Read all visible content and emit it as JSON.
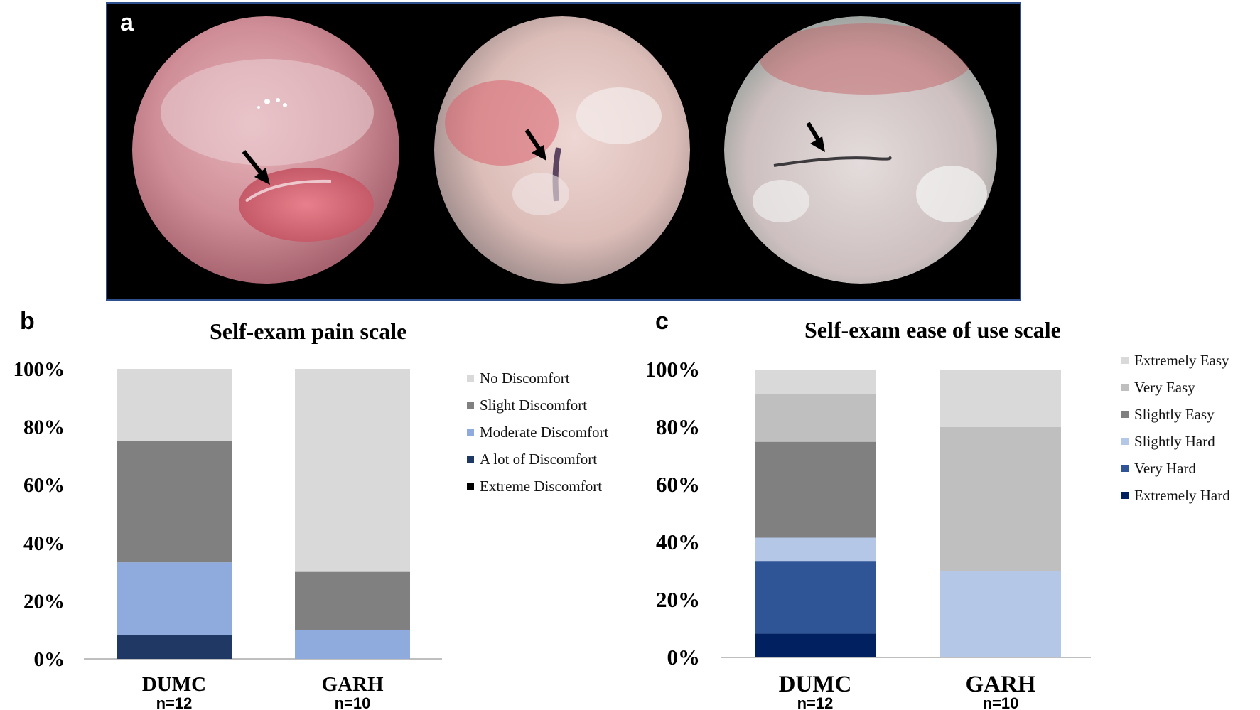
{
  "panel_a": {
    "letter": "a",
    "images": [
      {
        "name": "endoscopic view 1",
        "arrow": "black arrow"
      },
      {
        "name": "endoscopic view 2",
        "arrow": "black arrow"
      },
      {
        "name": "endoscopic view 3",
        "arrow": "black arrow"
      }
    ]
  },
  "chart_data": [
    {
      "panel": "b",
      "type": "bar",
      "stacked": true,
      "title": "Self-exam pain scale",
      "categories": [
        "DUMC",
        "GARH"
      ],
      "sample_sizes": [
        "n=12",
        "n=10"
      ],
      "ylim": [
        0,
        100
      ],
      "yticks": [
        "0%",
        "20%",
        "40%",
        "60%",
        "80%",
        "100%"
      ],
      "series": [
        {
          "name": "Extreme Discomfort",
          "color": "#000000",
          "values": [
            0,
            0
          ]
        },
        {
          "name": "A lot of Discomfort",
          "color": "#1f3864",
          "values": [
            8.3,
            0
          ]
        },
        {
          "name": "Moderate Discomfort",
          "color": "#8faadc",
          "values": [
            25,
            10
          ]
        },
        {
          "name": "Slight Discomfort",
          "color": "#808080",
          "values": [
            41.7,
            20
          ]
        },
        {
          "name": "No Discomfort",
          "color": "#d9d9d9",
          "values": [
            25,
            70
          ]
        }
      ],
      "legend": [
        "No Discomfort",
        "Slight Discomfort",
        "Moderate Discomfort",
        "A lot of Discomfort",
        "Extreme Discomfort"
      ]
    },
    {
      "panel": "c",
      "type": "bar",
      "stacked": true,
      "title": "Self-exam ease of use scale",
      "categories": [
        "DUMC",
        "GARH"
      ],
      "sample_sizes": [
        "n=12",
        "n=10"
      ],
      "ylim": [
        0,
        100
      ],
      "yticks": [
        "0%",
        "20%",
        "40%",
        "60%",
        "80%",
        "100%"
      ],
      "series": [
        {
          "name": "Extremely Hard",
          "color": "#002060",
          "values": [
            8.3,
            0
          ]
        },
        {
          "name": "Very Hard",
          "color": "#2f5597",
          "values": [
            25,
            0
          ]
        },
        {
          "name": "Slightly Hard",
          "color": "#b4c7e7",
          "values": [
            8.3,
            30
          ]
        },
        {
          "name": "Slightly Easy",
          "color": "#808080",
          "values": [
            33.3,
            0
          ]
        },
        {
          "name": "Very Easy",
          "color": "#bfbfbf",
          "values": [
            16.7,
            50
          ]
        },
        {
          "name": "Extremely Easy",
          "color": "#d9d9d9",
          "values": [
            8.3,
            20
          ]
        }
      ],
      "legend": [
        "Extremely Easy",
        "Very Easy",
        "Slightly Easy",
        "Slightly Hard",
        "Very Hard",
        "Extremely Hard"
      ]
    }
  ]
}
